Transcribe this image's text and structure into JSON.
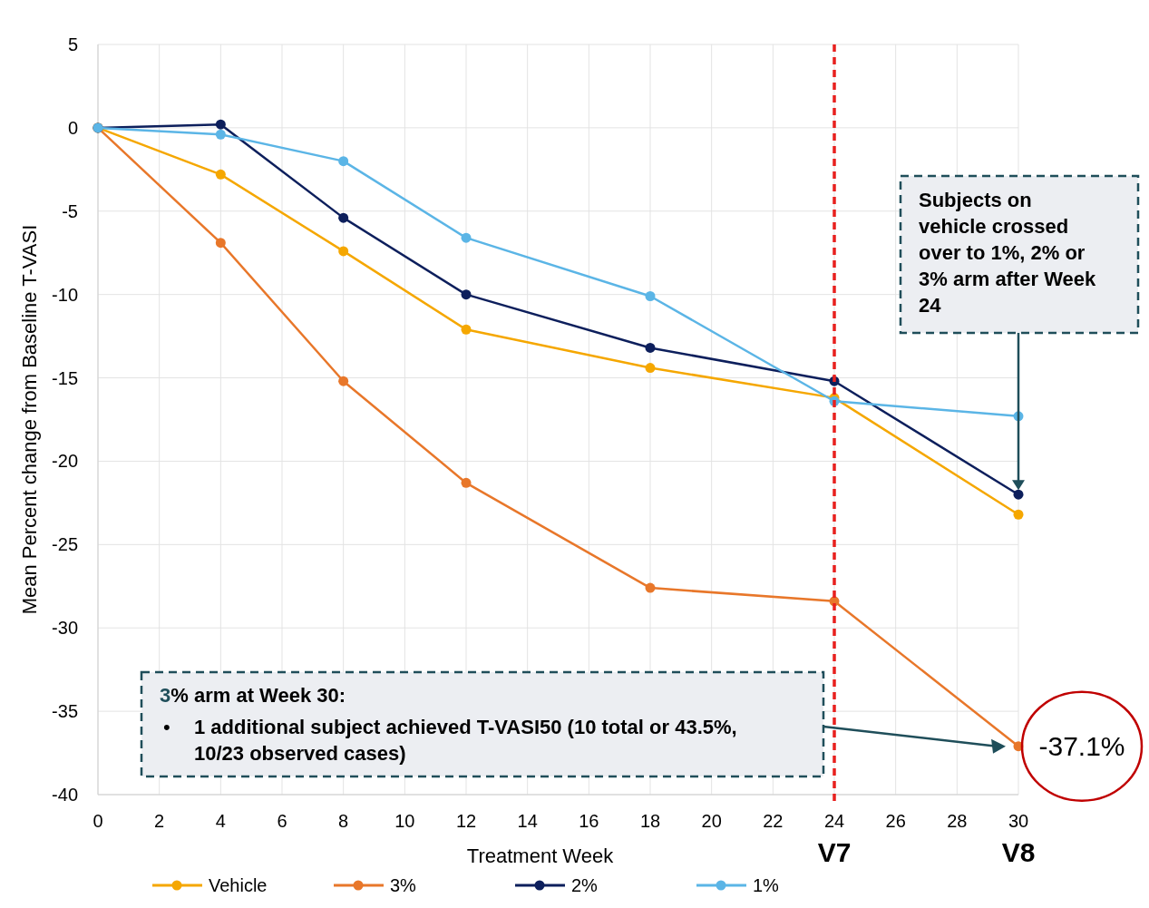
{
  "chart_data": {
    "type": "line",
    "xlabel": "Treatment Week",
    "ylabel": "Mean Percent change from Baseline T-VASI",
    "x": [
      0,
      4,
      8,
      12,
      18,
      24,
      30
    ],
    "series": [
      {
        "name": "Vehicle",
        "color": "#f5a700",
        "values": [
          0,
          -2.8,
          -7.4,
          -12.1,
          -14.4,
          -16.2,
          -23.2
        ]
      },
      {
        "name": "3%",
        "color": "#e8772a",
        "values": [
          0,
          -6.9,
          -15.2,
          -21.3,
          -27.6,
          -28.4,
          -37.1
        ]
      },
      {
        "name": "2%",
        "color": "#0d1f5c",
        "values": [
          0,
          0.2,
          -5.4,
          -10.0,
          -13.2,
          -15.2,
          -22.0
        ]
      },
      {
        "name": "1%",
        "color": "#5bb5e6",
        "values": [
          0,
          -0.4,
          -2.0,
          -6.6,
          -10.1,
          -16.4,
          -17.3
        ]
      }
    ],
    "xlim": [
      0,
      30
    ],
    "xticks": [
      0,
      2,
      4,
      6,
      8,
      10,
      12,
      14,
      16,
      18,
      20,
      22,
      24,
      26,
      28,
      30
    ],
    "ylim": [
      -40,
      5
    ],
    "yticks": [
      -40,
      -35,
      -30,
      -25,
      -20,
      -15,
      -10,
      -5,
      0,
      5
    ],
    "grid": true,
    "marker": "circle",
    "line_style": "solid",
    "legend": "bottom",
    "ref_lines": [
      {
        "axis": "x",
        "value": 24,
        "label": "V7",
        "color": "#e8201e",
        "line_style": "dashed"
      }
    ],
    "annotations": [
      "V8",
      {
        "text": "-37.1%",
        "x": 30,
        "y": -37.1
      },
      "Subjects on vehicle crossed over to 1%, 2% or 3% arm after Week 24",
      "3% arm at Week 30:",
      "• 1 additional subject achieved T-VASI50 (10 total or 43.5%, 10/23 observed cases)"
    ]
  }
}
